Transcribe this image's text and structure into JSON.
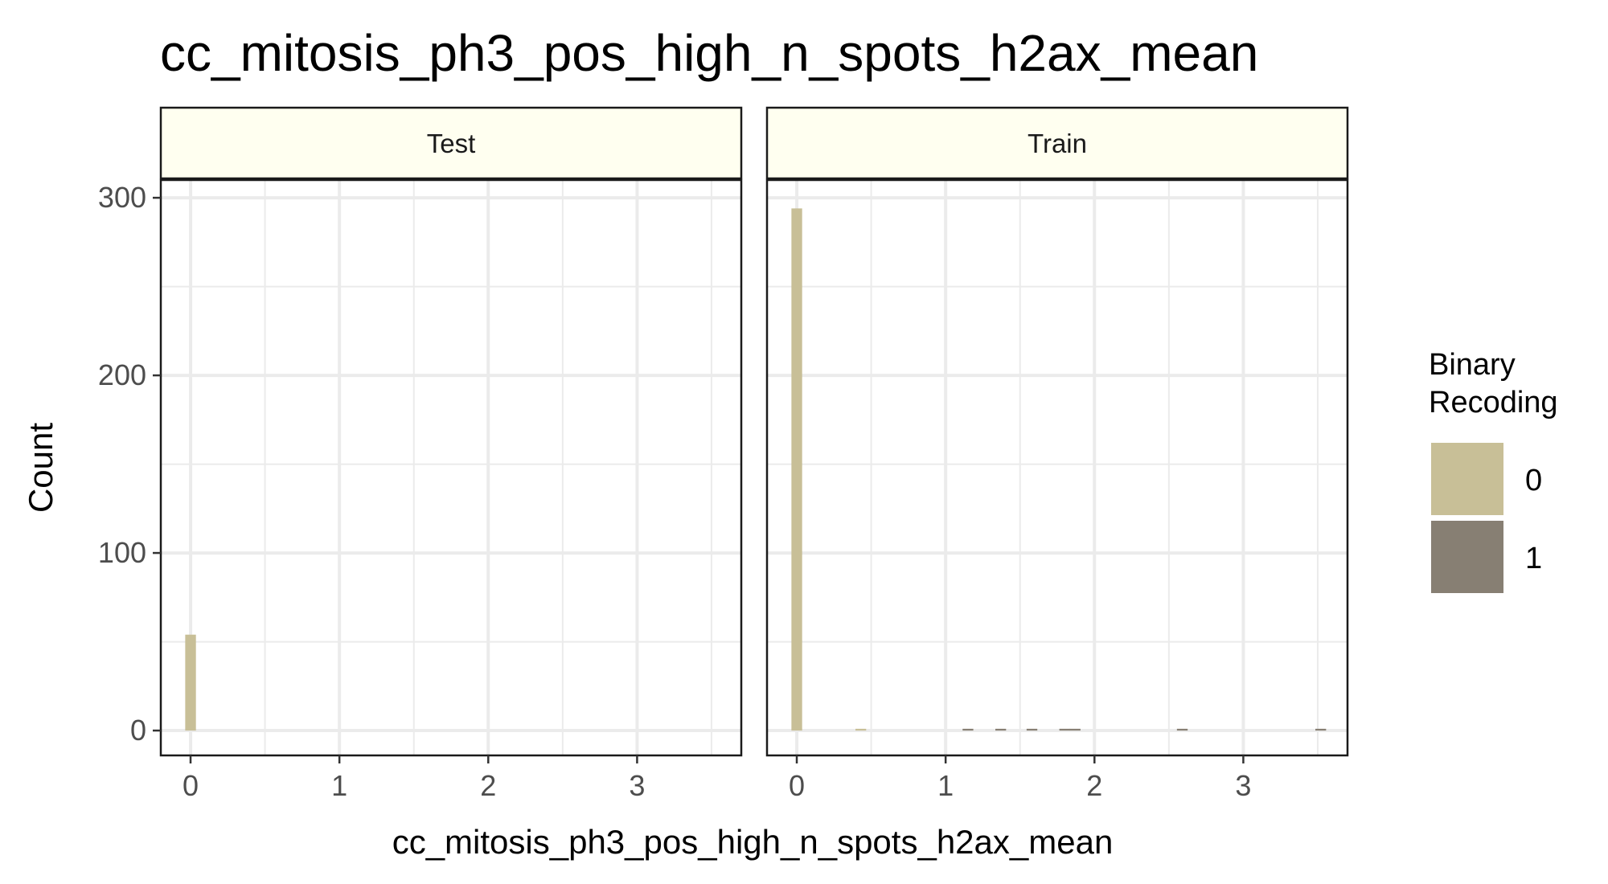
{
  "chart_data": {
    "type": "bar",
    "title": "cc_mitosis_ph3_pos_high_n_spots_h2ax_mean",
    "xlabel": "cc_mitosis_ph3_pos_high_n_spots_h2ax_mean",
    "ylabel": "Count",
    "xlim": [
      -0.2,
      3.7
    ],
    "ylim": [
      -14,
      310
    ],
    "x_ticks": [
      0,
      1,
      2,
      3
    ],
    "y_ticks": [
      0,
      100,
      200,
      300
    ],
    "grid": true,
    "bin_width": 0.072,
    "legend": {
      "title_lines": [
        "Binary",
        "Recoding"
      ],
      "position": "right",
      "items": [
        {
          "label": "0",
          "color": "#c8bf97"
        },
        {
          "label": "1",
          "color": "#877f73"
        }
      ]
    },
    "facets": [
      {
        "name": "Test",
        "bins": [
          {
            "x": 0.0,
            "count": 54,
            "group": "0"
          }
        ]
      },
      {
        "name": "Train",
        "bins": [
          {
            "x": 0.0,
            "count": 294,
            "group": "0"
          },
          {
            "x": 0.43,
            "count": 1,
            "group": "0"
          },
          {
            "x": 1.15,
            "count": 1,
            "group": "1"
          },
          {
            "x": 1.37,
            "count": 1,
            "group": "1"
          },
          {
            "x": 1.58,
            "count": 1,
            "group": "1"
          },
          {
            "x": 1.8,
            "count": 1,
            "group": "1"
          },
          {
            "x": 1.87,
            "count": 1,
            "group": "1"
          },
          {
            "x": 2.59,
            "count": 1,
            "group": "1"
          },
          {
            "x": 3.52,
            "count": 1,
            "group": "1"
          }
        ]
      }
    ]
  }
}
